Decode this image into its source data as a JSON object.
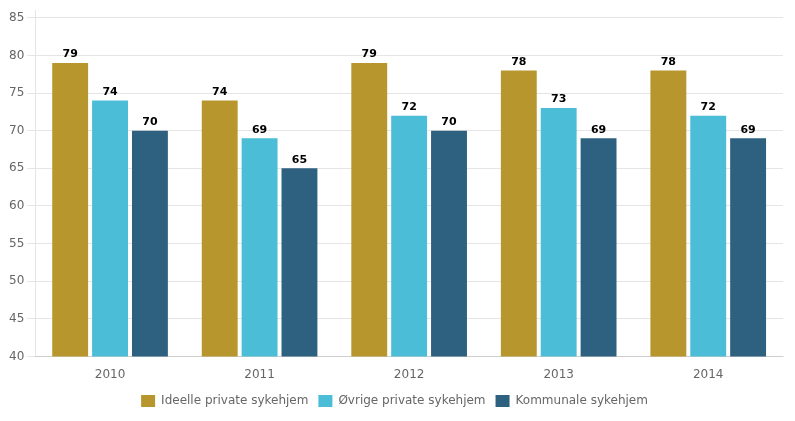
{
  "chart_data": {
    "type": "bar",
    "categories": [
      "2010",
      "2011",
      "2012",
      "2013",
      "2014"
    ],
    "series": [
      {
        "name": "Ideelle private sykehjem",
        "color": "#B8962E",
        "values": [
          79,
          74,
          79,
          78,
          78
        ]
      },
      {
        "name": "Øvrige private sykehjem",
        "color": "#4BBDD6",
        "values": [
          74,
          69,
          72,
          73,
          72
        ]
      },
      {
        "name": "Kommunale sykehjem",
        "color": "#2E6080",
        "values": [
          70,
          65,
          70,
          69,
          69
        ]
      }
    ],
    "ylim": [
      40,
      86
    ],
    "yticks": [
      40,
      45,
      50,
      55,
      60,
      65,
      70,
      75,
      80,
      85
    ],
    "grid": true,
    "legend": "bottom",
    "data_labels": true
  }
}
